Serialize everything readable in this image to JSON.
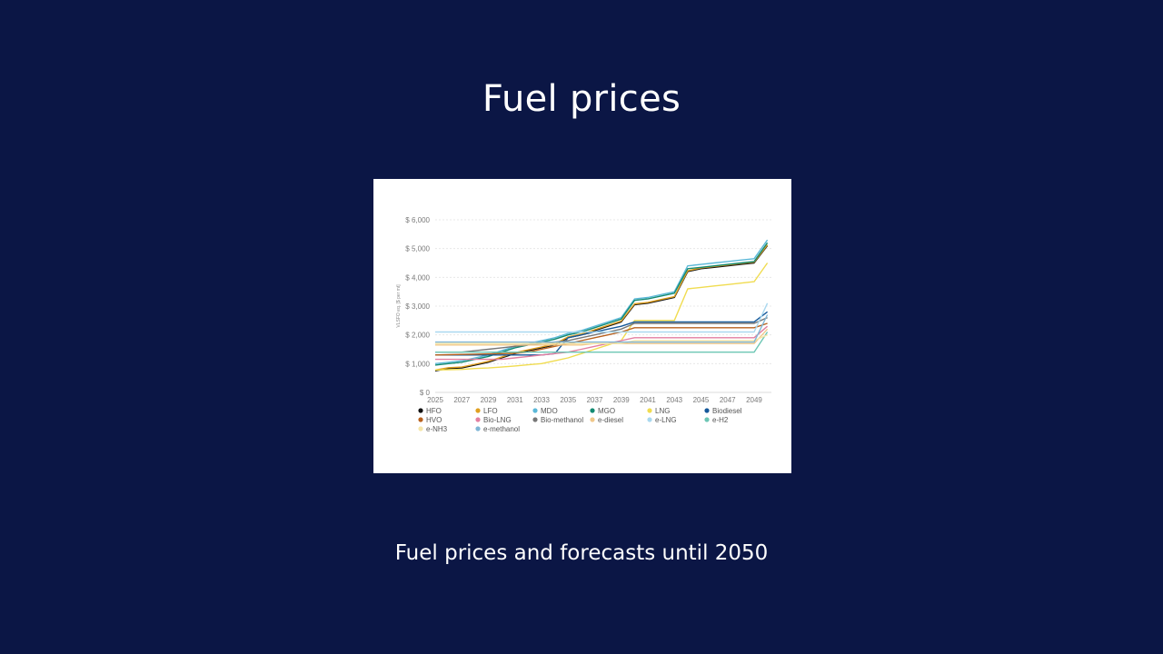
{
  "slide": {
    "title": "Fuel prices",
    "caption": "Fuel prices and forecasts until 2050"
  },
  "chart_data": {
    "type": "line",
    "title": "",
    "xlabel": "",
    "ylabel": "VLSFO eq. [$ per mt]",
    "ylim": [
      0,
      6000
    ],
    "y_ticks": [
      "$ 0",
      "$ 1,000",
      "$ 2,000",
      "$ 3,000",
      "$ 4,000",
      "$ 5,000",
      "$ 6,000"
    ],
    "x_ticks": [
      "2025",
      "2027",
      "2029",
      "2031",
      "2033",
      "2035",
      "2037",
      "2039",
      "2041",
      "2043",
      "2045",
      "2047",
      "2049"
    ],
    "grid": true,
    "legend_position": "bottom",
    "x": [
      2025,
      2026,
      2027,
      2028,
      2029,
      2030,
      2031,
      2032,
      2033,
      2034,
      2035,
      2036,
      2037,
      2038,
      2039,
      2040,
      2041,
      2042,
      2043,
      2044,
      2045,
      2046,
      2047,
      2048,
      2049,
      2050
    ],
    "series": [
      {
        "name": "HFO",
        "color": "#111111",
        "values": [
          750,
          830,
          850,
          950,
          1050,
          1200,
          1350,
          1450,
          1550,
          1650,
          1900,
          2000,
          2150,
          2300,
          2450,
          3050,
          3100,
          3200,
          3300,
          4200,
          4300,
          4350,
          4400,
          4450,
          4500,
          5100
        ]
      },
      {
        "name": "LFO",
        "color": "#e0a020",
        "values": [
          780,
          860,
          880,
          980,
          1080,
          1230,
          1380,
          1480,
          1580,
          1680,
          1930,
          2030,
          2180,
          2330,
          2480,
          3080,
          3130,
          3230,
          3330,
          4230,
          4330,
          4380,
          4430,
          4480,
          4530,
          5130
        ]
      },
      {
        "name": "MDO",
        "color": "#5bb8d8",
        "values": [
          1000,
          1050,
          1100,
          1200,
          1300,
          1450,
          1600,
          1700,
          1800,
          1900,
          2050,
          2150,
          2300,
          2450,
          2600,
          3250,
          3300,
          3400,
          3500,
          4400,
          4450,
          4500,
          4550,
          4600,
          4650,
          5300
        ]
      },
      {
        "name": "MGO",
        "color": "#138a72",
        "values": [
          950,
          1000,
          1050,
          1150,
          1250,
          1400,
          1550,
          1650,
          1750,
          1850,
          2000,
          2100,
          2250,
          2400,
          2550,
          3200,
          3250,
          3350,
          3450,
          4300,
          4350,
          4400,
          4450,
          4500,
          4550,
          5200
        ]
      },
      {
        "name": "LNG",
        "color": "#f0dc50",
        "values": [
          780,
          790,
          800,
          830,
          850,
          880,
          920,
          960,
          1000,
          1100,
          1200,
          1350,
          1500,
          1650,
          1800,
          2500,
          2500,
          2500,
          2500,
          3600,
          3650,
          3700,
          3750,
          3800,
          3850,
          4500
        ]
      },
      {
        "name": "Biodiesel",
        "color": "#15589a",
        "values": [
          1300,
          1300,
          1300,
          1300,
          1300,
          1300,
          1300,
          1300,
          1300,
          1350,
          1900,
          2000,
          2100,
          2200,
          2300,
          2450,
          2450,
          2450,
          2450,
          2450,
          2450,
          2450,
          2450,
          2450,
          2450,
          2800
        ]
      },
      {
        "name": "HVO",
        "color": "#b8611e",
        "values": [
          1300,
          1310,
          1320,
          1330,
          1340,
          1350,
          1360,
          1400,
          1500,
          1600,
          1700,
          1800,
          1900,
          2000,
          2100,
          2250,
          2250,
          2250,
          2250,
          2250,
          2250,
          2250,
          2250,
          2250,
          2250,
          2400
        ]
      },
      {
        "name": "Bio-LNG",
        "color": "#e37fa0",
        "values": [
          1150,
          1150,
          1150,
          1150,
          1150,
          1150,
          1200,
          1250,
          1300,
          1350,
          1400,
          1500,
          1600,
          1700,
          1800,
          1900,
          1900,
          1900,
          1900,
          1900,
          1900,
          1900,
          1900,
          1900,
          1900,
          2300
        ]
      },
      {
        "name": "Bio-methanol",
        "color": "#777777",
        "values": [
          1400,
          1400,
          1400,
          1450,
          1500,
          1550,
          1600,
          1650,
          1700,
          1750,
          1800,
          1900,
          2000,
          2100,
          2200,
          2400,
          2400,
          2400,
          2400,
          2400,
          2400,
          2400,
          2400,
          2400,
          2400,
          2600
        ]
      },
      {
        "name": "e-diesel",
        "color": "#f0c88a",
        "values": [
          1650,
          1650,
          1650,
          1650,
          1650,
          1650,
          1650,
          1650,
          1650,
          1650,
          1650,
          1650,
          1700,
          1700,
          1700,
          1700,
          1700,
          1700,
          1700,
          1700,
          1700,
          1700,
          1700,
          1700,
          1700,
          2200
        ]
      },
      {
        "name": "e-LNG",
        "color": "#a9d8ef",
        "values": [
          2100,
          2100,
          2100,
          2100,
          2100,
          2100,
          2100,
          2100,
          2100,
          2100,
          2100,
          2100,
          2100,
          2100,
          2100,
          2100,
          2100,
          2100,
          2100,
          2100,
          2100,
          2100,
          2100,
          2100,
          2100,
          3100
        ]
      },
      {
        "name": "e-H2",
        "color": "#6cc6b4",
        "values": [
          1400,
          1400,
          1400,
          1400,
          1400,
          1400,
          1400,
          1400,
          1400,
          1400,
          1400,
          1400,
          1400,
          1400,
          1400,
          1400,
          1400,
          1400,
          1400,
          1400,
          1400,
          1400,
          1400,
          1400,
          1400,
          2100
        ]
      },
      {
        "name": "e-NH3",
        "color": "#f5e6a8",
        "values": [
          1700,
          1700,
          1700,
          1700,
          1700,
          1700,
          1700,
          1700,
          1700,
          1700,
          1700,
          1700,
          1700,
          1700,
          1700,
          1800,
          1800,
          1800,
          1800,
          1800,
          1800,
          1800,
          1800,
          1800,
          1800,
          2000
        ]
      },
      {
        "name": "e-methanol",
        "color": "#7fb6d6",
        "values": [
          1750,
          1750,
          1750,
          1750,
          1750,
          1750,
          1750,
          1750,
          1750,
          1750,
          1750,
          1750,
          1750,
          1750,
          1750,
          1750,
          1750,
          1750,
          1750,
          1750,
          1750,
          1750,
          1750,
          1750,
          1750,
          2700
        ]
      }
    ]
  }
}
